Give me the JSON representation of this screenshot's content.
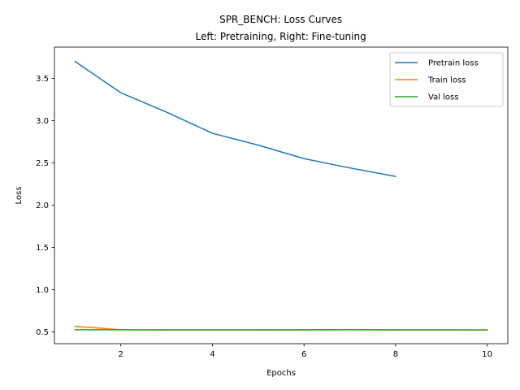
{
  "chart_data": {
    "type": "line",
    "title": "SPR_BENCH: Loss Curves",
    "subtitle": "Left: Pretraining, Right: Fine-tuning",
    "xlabel": "Epochs",
    "ylabel": "Loss",
    "xlim": [
      0.55,
      10.45
    ],
    "ylim": [
      0.36,
      3.87
    ],
    "xticks": [
      2,
      4,
      6,
      8,
      10
    ],
    "yticks": [
      0.5,
      1.0,
      1.5,
      2.0,
      2.5,
      3.0,
      3.5
    ],
    "ytick_labels": [
      "0.5",
      "1.0",
      "1.5",
      "2.0",
      "2.5",
      "3.0",
      "3.5"
    ],
    "grid": false,
    "legend_position": "top-right",
    "series": [
      {
        "name": "Pretrain loss",
        "color": "#1f77b4",
        "x": [
          1,
          2,
          3,
          4,
          5,
          6,
          7,
          8
        ],
        "y": [
          3.7,
          3.33,
          3.1,
          2.85,
          2.71,
          2.55,
          2.44,
          2.34
        ]
      },
      {
        "name": "Train loss",
        "color": "#ff7f0e",
        "x": [
          1,
          2,
          3,
          4,
          5,
          6,
          7,
          8,
          9,
          10
        ],
        "y": [
          0.565,
          0.525,
          0.524,
          0.523,
          0.523,
          0.523,
          0.525,
          0.523,
          0.523,
          0.522
        ]
      },
      {
        "name": "Val loss",
        "color": "#2ca02c",
        "x": [
          1,
          2,
          3,
          4,
          5,
          6,
          7,
          8,
          9,
          10
        ],
        "y": [
          0.525,
          0.525,
          0.524,
          0.524,
          0.524,
          0.525,
          0.526,
          0.524,
          0.523,
          0.522
        ]
      }
    ]
  }
}
